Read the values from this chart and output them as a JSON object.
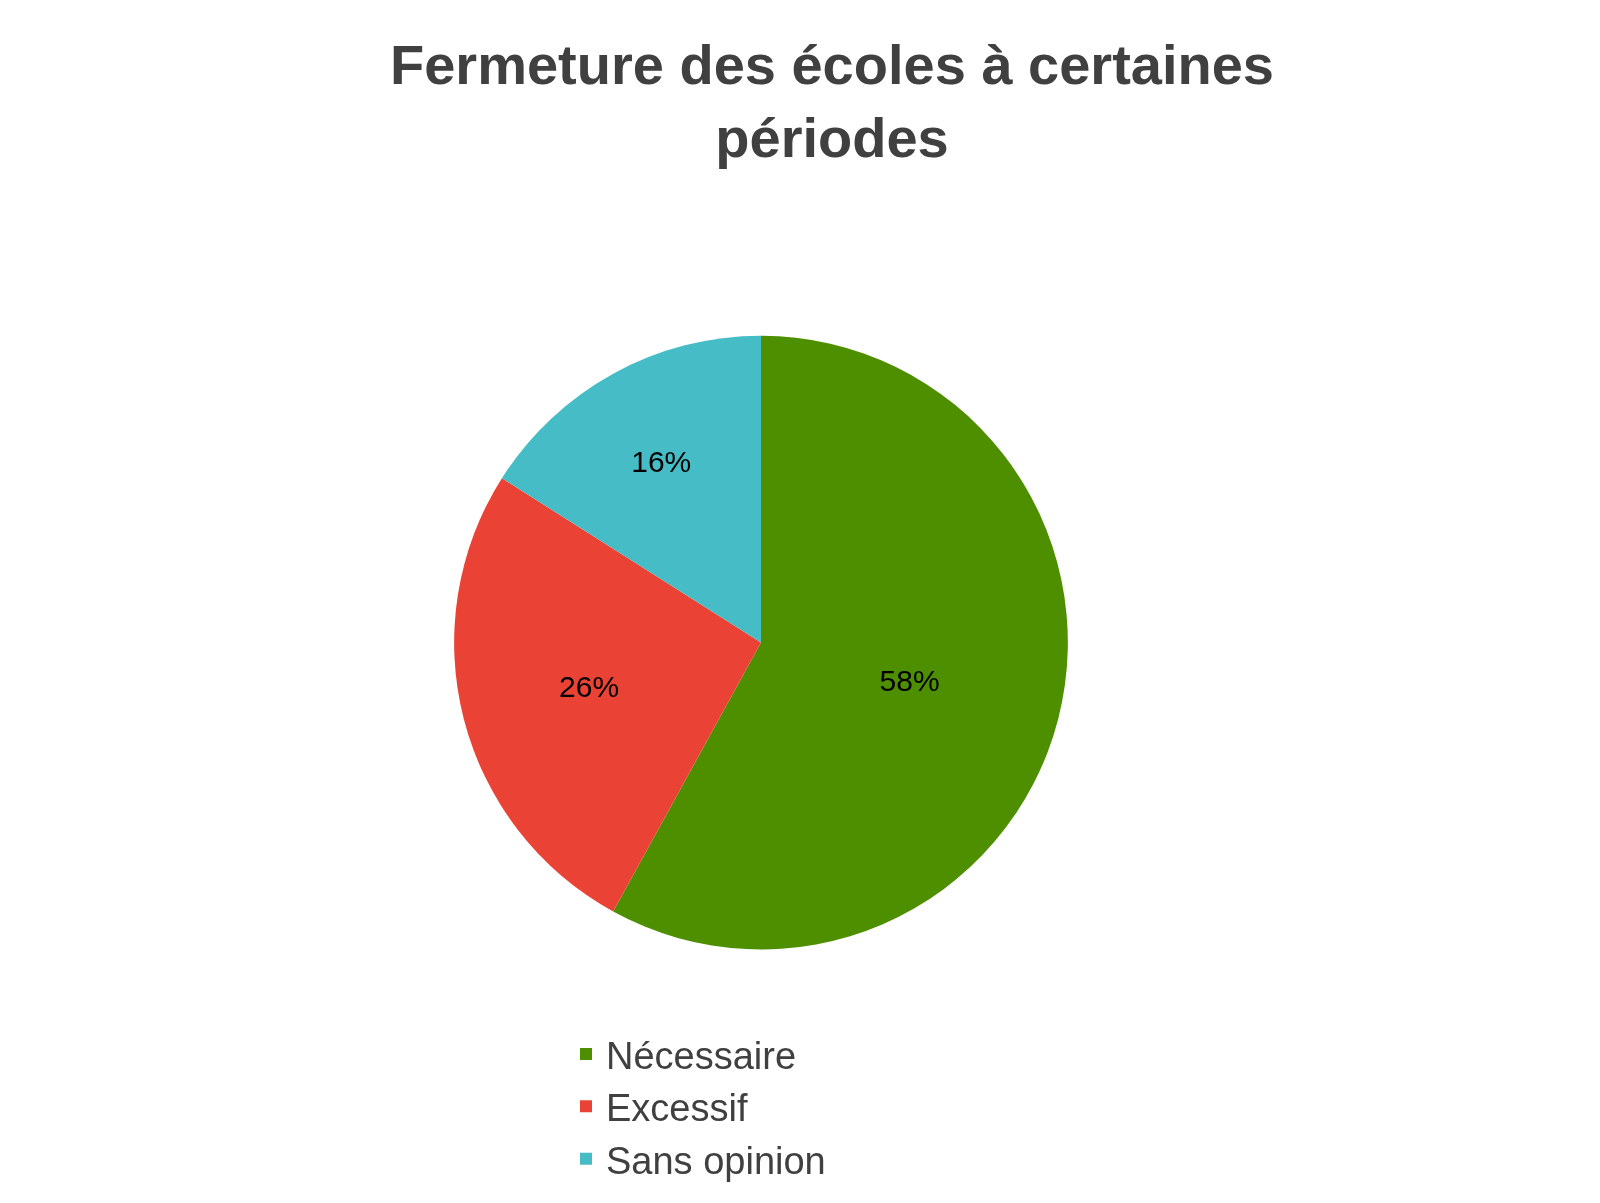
{
  "chart_data": {
    "type": "pie",
    "title": "Fermeture des écoles à certaines\npériodes",
    "categories": [
      "Nécessaire",
      "Excessif",
      "Sans opinion"
    ],
    "values": [
      58,
      26,
      16
    ],
    "colors": [
      "#4e8f00",
      "#ea4335",
      "#46bdc6"
    ],
    "value_labels": [
      "58%",
      "26%",
      "16%"
    ],
    "legend": "bottom"
  }
}
